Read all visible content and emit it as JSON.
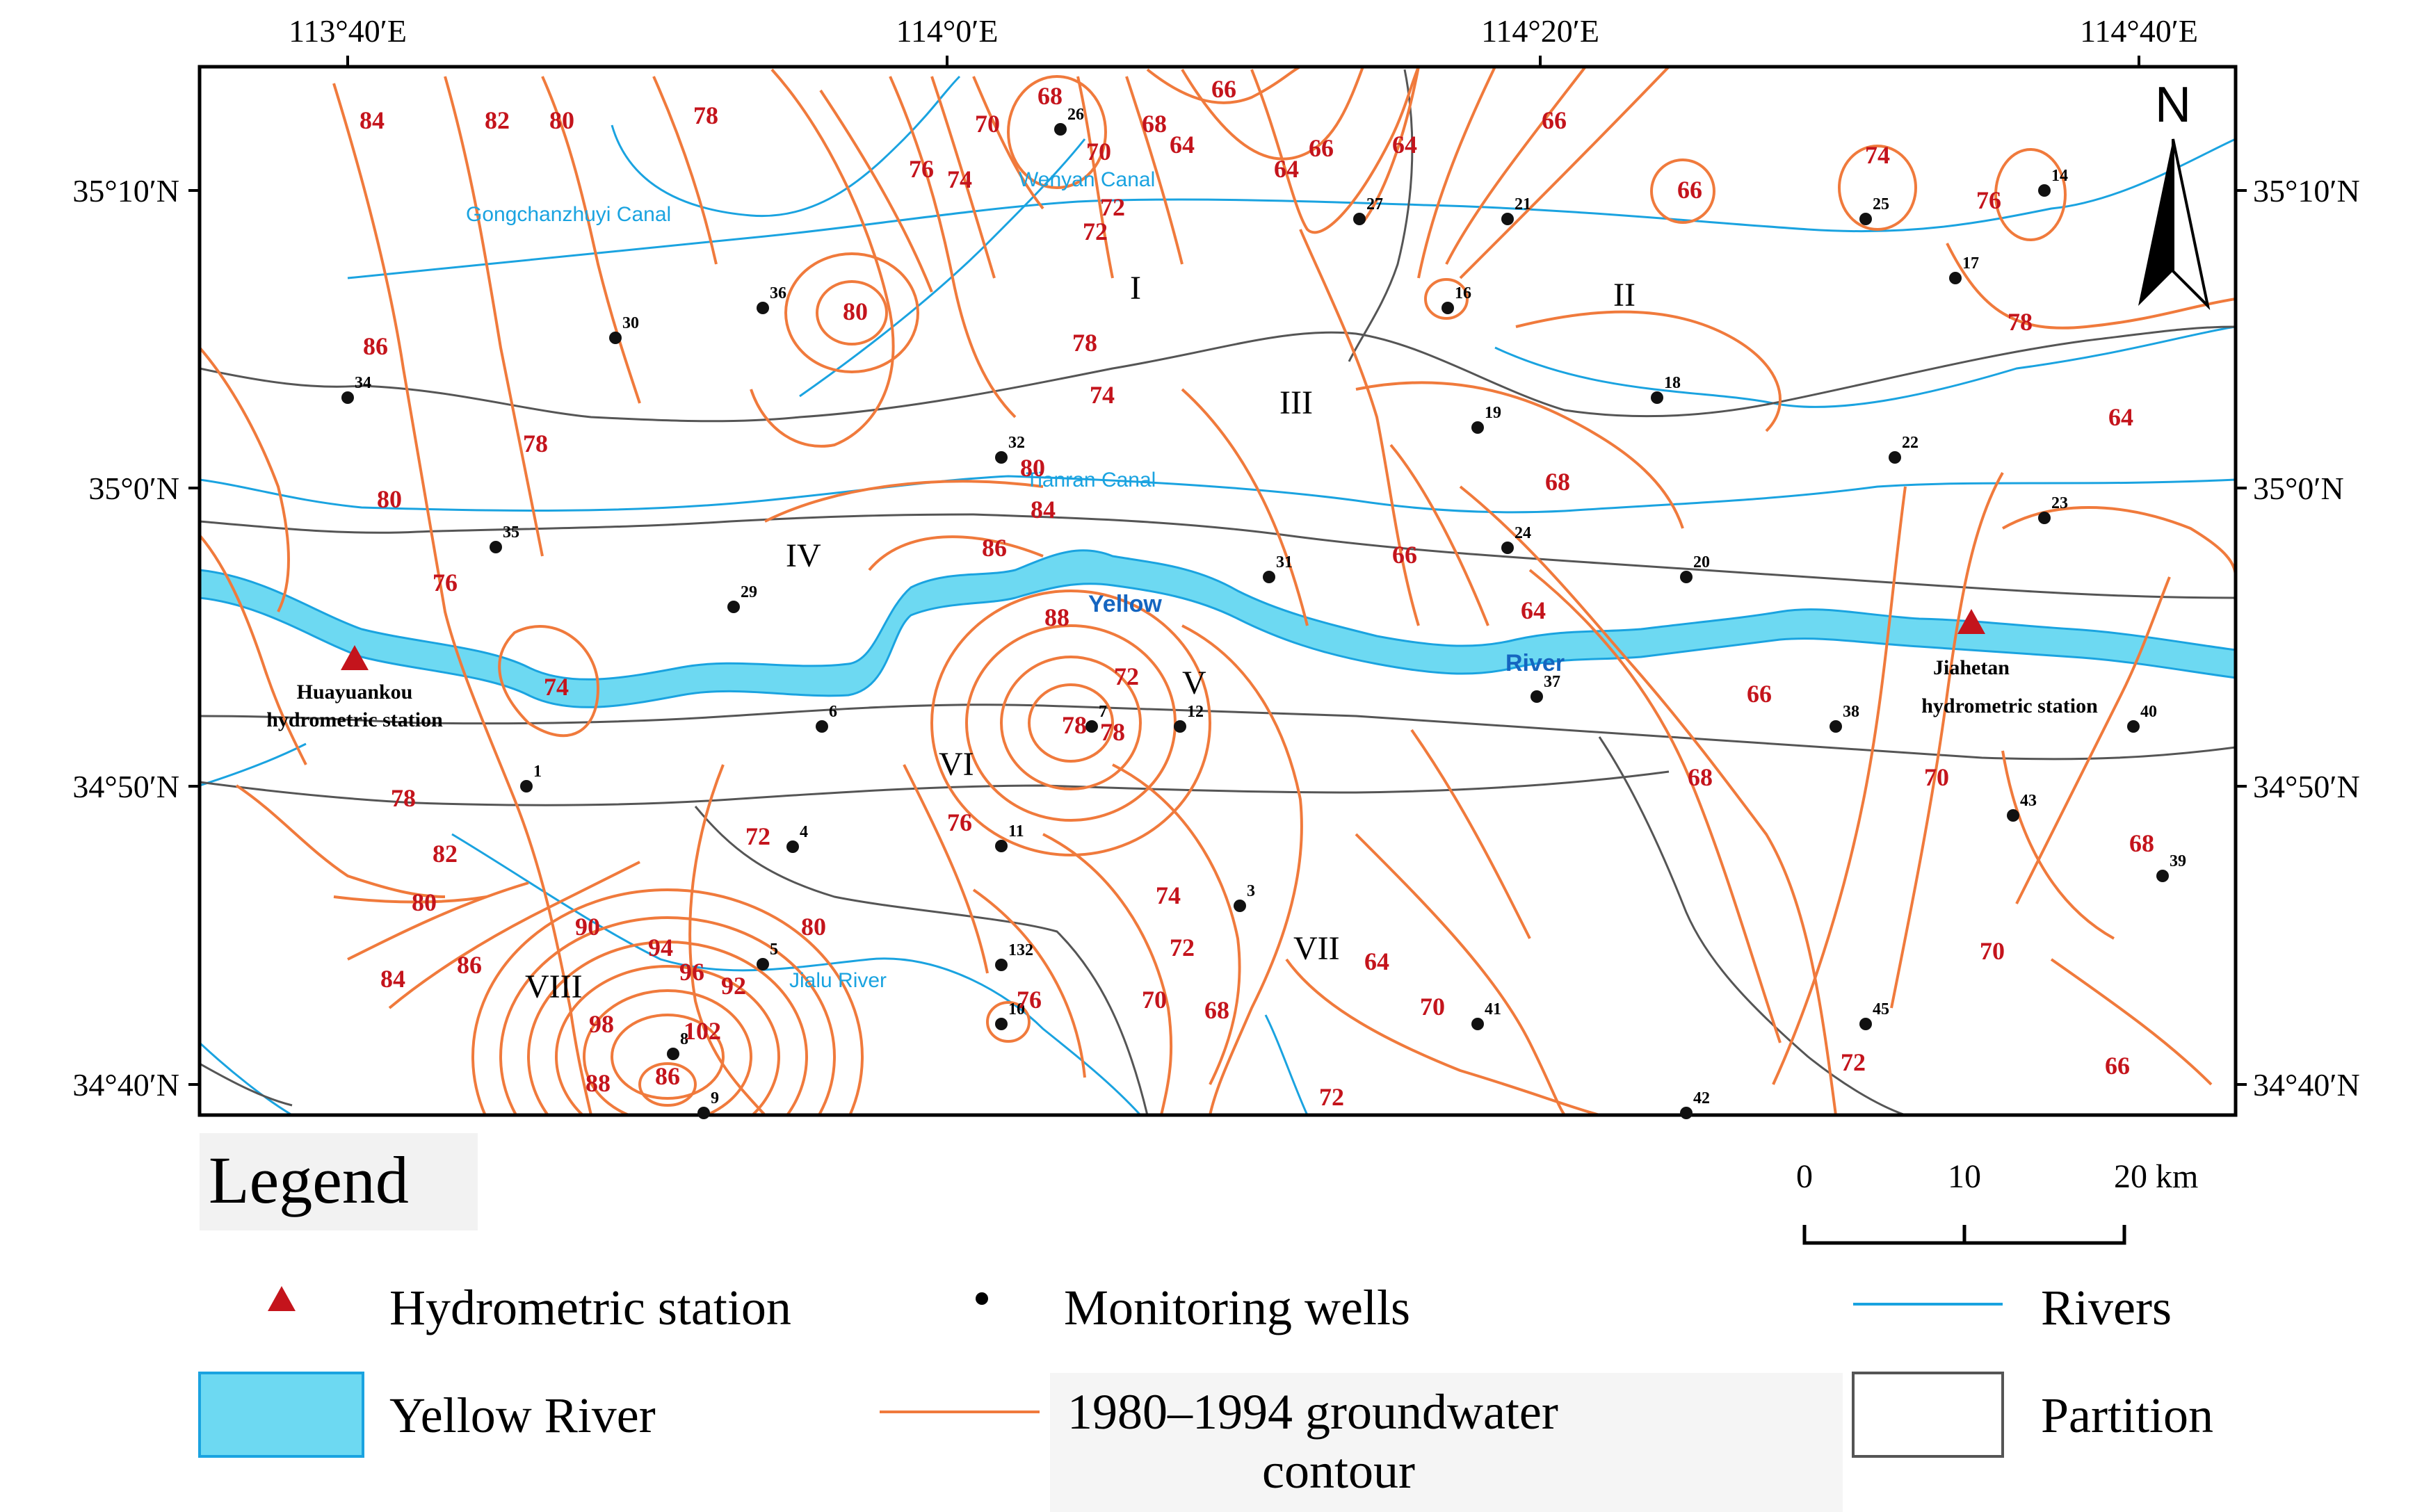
{
  "axes": {
    "top_lon": [
      "113°40′E",
      "114°0′E",
      "114°20′E",
      "114°40′E"
    ],
    "left_lat": [
      "35°10′N",
      "35°0′N",
      "34°50′N",
      "34°40′N"
    ],
    "right_lat": [
      "35°10′N",
      "35°0′N",
      "34°50′N",
      "34°40′N"
    ]
  },
  "north": "N",
  "rivers": {
    "gongchanzhuyi": "Gongchanzhuyi  Canal",
    "wenyan": "Wenyan Canal",
    "tianran": "Tianran Canal",
    "jialu": "Jialu River",
    "yellow_1": "Yellow",
    "yellow_2": "River"
  },
  "zones": [
    "I",
    "II",
    "III",
    "IV",
    "V",
    "VI",
    "VII",
    "VIII"
  ],
  "stations": [
    {
      "name_1": "Huayuankou",
      "name_2": "hydrometric station"
    },
    {
      "name_1": "Jiahetan",
      "name_2": "hydrometric station"
    }
  ],
  "wells": [
    "1",
    "3",
    "4",
    "5",
    "6",
    "7",
    "8",
    "9",
    "10",
    "11",
    "12",
    "132",
    "14",
    "16",
    "17",
    "18",
    "19",
    "20",
    "21",
    "22",
    "23",
    "24",
    "25",
    "26",
    "27",
    "29",
    "30",
    "31",
    "32",
    "34",
    "35",
    "36",
    "37",
    "38",
    "39",
    "40",
    "41",
    "42",
    "43",
    "45"
  ],
  "contour_labels": [
    "84",
    "82",
    "80",
    "78",
    "86",
    "78",
    "80",
    "76",
    "74",
    "78",
    "82",
    "80",
    "84",
    "86",
    "90",
    "94",
    "96",
    "92",
    "98",
    "102",
    "88",
    "86",
    "80",
    "76",
    "72",
    "70",
    "68",
    "76",
    "74",
    "72",
    "78",
    "80",
    "74",
    "72",
    "70",
    "68",
    "66",
    "64",
    "64",
    "66",
    "64",
    "66",
    "66",
    "74",
    "76",
    "78",
    "80",
    "84",
    "86",
    "88",
    "72",
    "78",
    "78",
    "76",
    "74",
    "72",
    "70",
    "68",
    "64",
    "70",
    "72",
    "66",
    "68",
    "64",
    "66",
    "68",
    "70",
    "72",
    "70",
    "68",
    "66",
    "64"
  ],
  "legend": {
    "title": "Legend",
    "hydrometric_station": "Hydrometric station",
    "monitoring_wells": "Monitoring wells",
    "rivers": "Rivers",
    "yellow_river": "Yellow River",
    "contour_1": "1980–1994 groundwater",
    "contour_2": "contour",
    "partition": "Partition"
  },
  "scale": {
    "ticks": [
      "0",
      "10",
      "20 km"
    ]
  },
  "colors": {
    "contour": "#f07a3c",
    "contour_label": "#c4141c",
    "river": "#1aa3e0",
    "yellow_river_fill": "#6dd9f2",
    "partition": "#555555",
    "station": "#c4141c"
  }
}
